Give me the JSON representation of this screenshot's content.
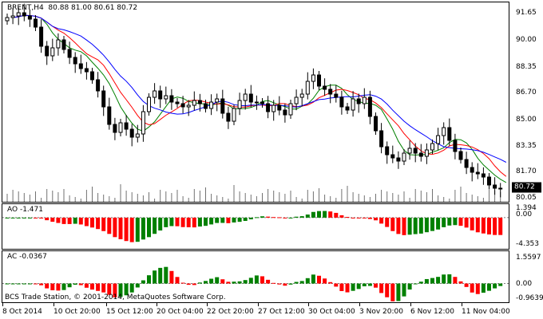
{
  "colors": {
    "background": "#ffffff",
    "bull_candle": "#ffffff",
    "bear_candle": "#000000",
    "ma_fast": "#008000",
    "ma_mid": "#ff0000",
    "ma_slow": "#0000ff",
    "histogram_up": "#008000",
    "histogram_down": "#ff0000",
    "volume": "#000000",
    "current_price_box": "#000000"
  },
  "main_chart": {
    "label": "BRENT,H4  80.88 81.00 80.61 80.72",
    "current_price": "80.72",
    "y_labels": [
      "91.65",
      "90.00",
      "88.35",
      "86.70",
      "85.00",
      "83.35",
      "81.70",
      "80.05"
    ],
    "y_values": [
      91.65,
      90.0,
      88.35,
      86.7,
      85.0,
      83.35,
      81.7,
      80.05
    ]
  },
  "ao_panel": {
    "label": "AO -1.471",
    "y_labels": [
      "1.394",
      "0.00",
      "-4.353"
    ],
    "y_values": [
      1.394,
      0.0,
      -4.353
    ]
  },
  "ac_panel": {
    "label": "AC -0.0367",
    "y_labels": [
      "1.5597",
      "0.00",
      "-0.9639"
    ],
    "y_values": [
      1.5597,
      0.0,
      -0.9639
    ]
  },
  "x_axis": {
    "labels": [
      "8 Oct 2014",
      "10 Oct 20:00",
      "15 Oct 12:00",
      "20 Oct 04:00",
      "22 Oct 20:00",
      "27 Oct 12:00",
      "30 Oct 04:00",
      "3 Nov 20:00",
      "6 Nov 12:00",
      "11 Nov 04:00"
    ]
  },
  "copyright": "BCS Trade Station, © 2001-2014, MetaQuotes Software Corp.",
  "chart_data": {
    "type": "line",
    "series": [
      {
        "values": [
          91.4,
          91.5,
          91.7,
          91.5,
          91.3,
          90.8,
          89.6,
          89.0,
          89.5,
          90.0,
          89.4,
          88.9,
          88.5,
          88.2,
          88.0,
          87.5,
          86.8,
          85.8,
          84.7,
          84.2,
          84.8,
          84.4,
          83.9,
          84.1,
          85.5,
          86.4,
          86.8,
          86.3,
          86.5,
          86.1,
          86.0,
          85.8,
          85.9,
          86.2,
          86.0,
          85.7,
          86.1,
          86.3,
          85.4,
          84.9,
          85.7,
          86.2,
          86.6,
          86.1,
          86.1,
          86.0,
          85.5,
          85.9,
          85.6,
          85.3,
          86.0,
          86.4,
          86.6,
          87.4,
          87.8,
          87.1,
          86.9,
          86.6,
          86.4,
          85.8,
          85.6,
          86.3,
          86.0,
          86.4,
          85.2,
          84.3,
          83.3,
          82.8,
          82.6,
          82.4,
          82.9,
          83.2,
          82.9,
          82.7,
          83.1,
          83.5,
          84.0,
          84.5,
          83.7,
          83.0,
          82.5,
          82.0,
          81.7,
          81.6,
          81.4,
          80.9,
          80.7,
          80.7
        ],
        "note": ""
      }
    ]
  }
}
